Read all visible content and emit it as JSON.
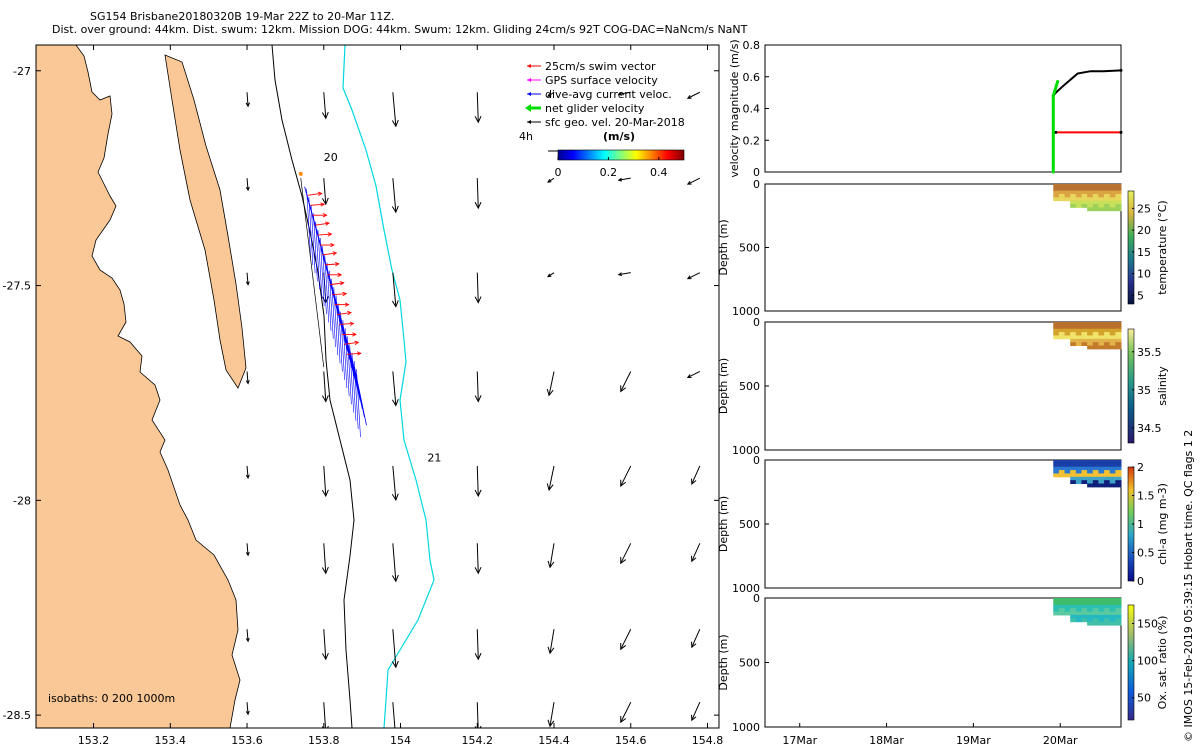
{
  "figure": {
    "title_line1": "SG154 Brisbane20180320B 19-Mar 22Z to 20-Mar 11Z.",
    "title_line2": "Dist. over ground: 44km. Dist. swum: 12km. Mission DOG: 44km. Swum: 12km. Gliding 24cm/s 92T COG-DAC=NaNcm/s NaNT",
    "footer": "© IMOS 15-Feb-2019 05:39:15 Hobart time. QC flags 1  2"
  },
  "colors": {
    "land": "#f9c896",
    "swim": "#ff0000",
    "gps": "#ff00ff",
    "dac": "#0000ff",
    "net": "#00dd00",
    "sfc": "#000000",
    "isobath200": "#000000",
    "isobath1000": "#00d8e0"
  },
  "chart_data": [
    {
      "type": "scatter",
      "name": "map",
      "xlim": [
        153.05,
        154.83
      ],
      "ylim": [
        -28.53,
        -26.94
      ],
      "x_ticks": [
        153.2,
        153.4,
        153.6,
        153.8,
        154.0,
        154.2,
        154.4,
        154.6,
        154.8
      ],
      "x_tick_labels": [
        "153.2",
        "153.4",
        "153.6",
        "153.8",
        "154",
        "154.2",
        "154.4",
        "154.6",
        "154.8"
      ],
      "y_ticks": [
        -27.0,
        -27.5,
        -28.0,
        -28.5
      ],
      "y_tick_labels": [
        "-27",
        "-27.5",
        "-28",
        "-28.5"
      ],
      "legend": {
        "position": "top-right",
        "entries": [
          "25cm/s swim vector",
          "GPS surface velocity",
          "dive-avg current veloc.",
          "net glider velocity",
          "sfc geo. vel. 20-Mar-2018"
        ]
      },
      "colorbar": {
        "label": "(m/s)",
        "ticks": [
          "0",
          "0.2",
          "0.4"
        ],
        "range": [
          0,
          0.5
        ]
      },
      "scale_label": "4h",
      "isobath_text": "isobaths:  0   200  1000m",
      "day_labels": [
        {
          "text": "20",
          "lon": 153.8,
          "lat": -27.21
        },
        {
          "text": "21",
          "lon": 154.07,
          "lat": -27.91
        }
      ],
      "geo_vectors": {
        "lons": [
          153.6,
          153.8,
          153.98,
          154.2,
          154.4,
          154.6,
          154.78
        ],
        "lats": [
          -27.05,
          -27.25,
          -27.47,
          -27.7,
          -27.92,
          -28.1,
          -28.3,
          -28.47
        ],
        "note": "surface geostrophic velocity, roughly southward 0.2-0.45 m/s offshore"
      },
      "glider_track": {
        "start": [
          153.75,
          -27.27
        ],
        "end": [
          153.88,
          -27.69
        ]
      }
    },
    {
      "type": "line",
      "name": "velocity",
      "ylabel": "velocity magnitude (m/s)",
      "xlim": [
        16.6,
        20.7
      ],
      "ylim": [
        0,
        0.8
      ],
      "y_ticks": [
        0,
        0.2,
        0.4,
        0.6,
        0.8
      ],
      "y_tick_labels": [
        "0",
        "0.2",
        "0.4",
        "0.6",
        "0.8"
      ],
      "series": [
        {
          "name": "sfc geo. vel.",
          "color": "#000000",
          "x": [
            19.92,
            19.95,
            20.05,
            20.2,
            20.35,
            20.5,
            20.7
          ],
          "y": [
            0.48,
            0.5,
            0.55,
            0.62,
            0.635,
            0.635,
            0.64
          ]
        },
        {
          "name": "swim",
          "color": "#ff0000",
          "x": [
            19.95,
            20.7
          ],
          "y": [
            0.25,
            0.25
          ]
        },
        {
          "name": "net glider velocity",
          "color": "#00dd00",
          "x": [
            19.92,
            19.92,
            19.97
          ],
          "y": [
            0.0,
            0.48,
            0.57
          ]
        }
      ]
    },
    {
      "type": "heatmap",
      "name": "temperature",
      "ylabel": "Depth (m)",
      "ylim": [
        0,
        1000
      ],
      "y_ticks": [
        0,
        500,
        1000
      ],
      "y_tick_labels": [
        "0",
        "500",
        "1000"
      ],
      "colorbar": {
        "label": "temperature (°C)",
        "ticks": [
          5,
          10,
          15,
          20,
          25
        ],
        "range": [
          3,
          29
        ]
      },
      "x_range": [
        19.92,
        20.7
      ],
      "depth_range": [
        0,
        210
      ]
    },
    {
      "type": "heatmap",
      "name": "salinity",
      "ylabel": "Depth (m)",
      "ylim": [
        0,
        1000
      ],
      "y_ticks": [
        0,
        500,
        1000
      ],
      "y_tick_labels": [
        "0",
        "500",
        "1000"
      ],
      "colorbar": {
        "label": "salinity",
        "ticks": [
          34.5,
          35,
          35.5
        ],
        "tick_labels": [
          "34.5",
          "35",
          "35.5"
        ],
        "range": [
          34.3,
          35.8
        ]
      },
      "x_range": [
        19.92,
        20.7
      ],
      "depth_range": [
        0,
        210
      ]
    },
    {
      "type": "heatmap",
      "name": "chlorophyll",
      "ylabel": "Depth (m)",
      "ylim": [
        0,
        1000
      ],
      "y_ticks": [
        0,
        500,
        1000
      ],
      "y_tick_labels": [
        "0",
        "500",
        "1000"
      ],
      "colorbar": {
        "label": "chl-a (mg m-3)",
        "ticks": [
          0,
          0.5,
          1,
          1.5,
          2
        ],
        "tick_labels": [
          "0",
          "0.5",
          "1",
          "1.5",
          "2"
        ],
        "range": [
          0,
          2
        ]
      },
      "x_range": [
        19.92,
        20.7
      ],
      "depth_range": [
        0,
        210
      ]
    },
    {
      "type": "heatmap",
      "name": "oxygen",
      "ylabel": "Depth (m)",
      "ylim": [
        0,
        1000
      ],
      "y_ticks": [
        0,
        500,
        1000
      ],
      "y_tick_labels": [
        "0",
        "500",
        "1000"
      ],
      "colorbar": {
        "label": "Ox. sat. ratio (%)",
        "ticks": [
          50,
          100,
          150
        ],
        "tick_labels": [
          "50",
          "100",
          "150"
        ],
        "range": [
          20,
          175
        ]
      },
      "x_range": [
        19.92,
        20.7
      ],
      "depth_range": [
        0,
        210
      ],
      "x_ticks": [
        17,
        18,
        19,
        20
      ],
      "x_tick_labels": [
        "17Mar",
        "18Mar",
        "19Mar",
        "20Mar"
      ]
    }
  ]
}
